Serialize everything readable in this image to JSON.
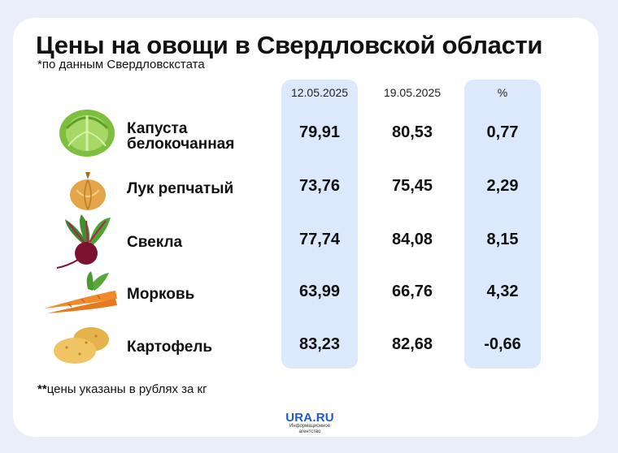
{
  "header": {
    "title": "Цены на овощи в Свердловской области",
    "subtitle": "*по данным Свердловскстата"
  },
  "footnote": {
    "marker": "**",
    "text": "цены указаны в рублях за кг"
  },
  "logo": {
    "name": "URA.RU",
    "tagline": "Информационное агентство"
  },
  "colors": {
    "highlight": "#dce8fb",
    "background": "#e9eefa",
    "brand": "#1f57d6"
  },
  "chart_data": {
    "type": "table",
    "columns": [
      "12.05.2025",
      "19.05.2025",
      "%"
    ],
    "rows": [
      {
        "name_lines": [
          "Капуста",
          "белокочанная"
        ],
        "icon": "cabbage-icon",
        "values": [
          "79,91",
          "80,53",
          "0,77"
        ]
      },
      {
        "name_lines": [
          "Лук репчатый"
        ],
        "icon": "onion-icon",
        "values": [
          "73,76",
          "75,45",
          "2,29"
        ]
      },
      {
        "name_lines": [
          "Свекла"
        ],
        "icon": "beet-icon",
        "values": [
          "77,74",
          "84,08",
          "8,15"
        ]
      },
      {
        "name_lines": [
          "Морковь"
        ],
        "icon": "carrot-icon",
        "values": [
          "63,99",
          "66,76",
          "4,32"
        ]
      },
      {
        "name_lines": [
          "Картофель"
        ],
        "icon": "potato-icon",
        "values": [
          "83,23",
          "82,68",
          "-0,66"
        ]
      }
    ]
  }
}
